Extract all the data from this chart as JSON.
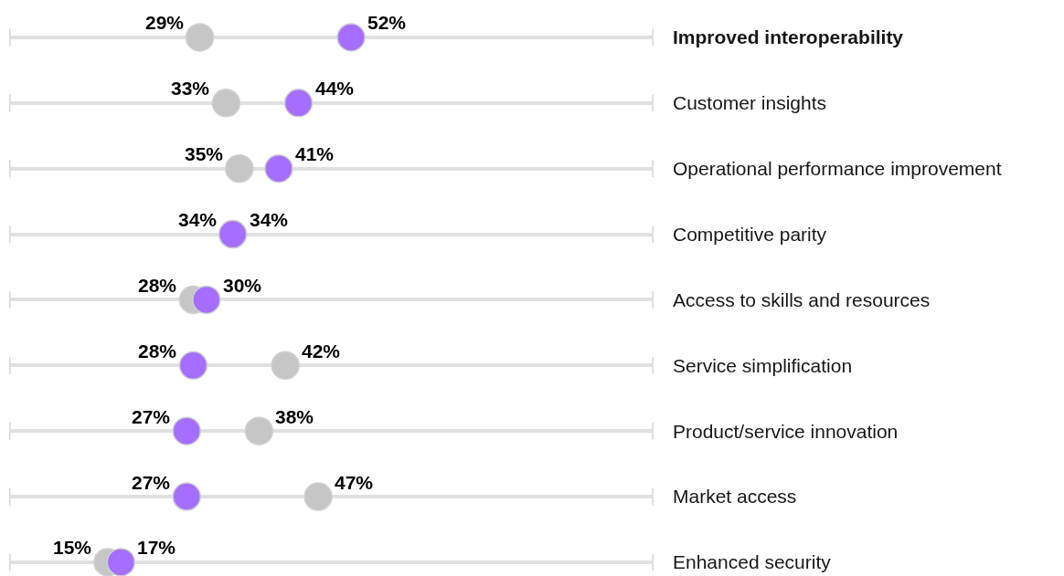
{
  "chart_data": {
    "type": "scatter",
    "orientation": "horizontal",
    "categories": [
      "Improved interoperability",
      "Customer insights",
      "Operational performance improvement",
      "Competitive parity",
      "Access to skills and resources",
      "Service simplification",
      "Product/service innovation",
      "Market access",
      "Enhanced security"
    ],
    "series": [
      {
        "color": "#c6c6c6",
        "values": [
          29,
          33,
          35,
          34,
          28,
          42,
          38,
          47,
          15
        ],
        "value_labels": [
          "29%",
          "33%",
          "35%",
          "34%",
          "28%",
          "42%",
          "38%",
          "47%",
          "15%"
        ]
      },
      {
        "color": "#a56eff",
        "values": [
          52,
          44,
          41,
          34,
          30,
          28,
          27,
          27,
          17
        ],
        "value_labels": [
          "52%",
          "44%",
          "41%",
          "34%",
          "30%",
          "28%",
          "27%",
          "27%",
          "17%"
        ]
      }
    ],
    "xlim": [
      0,
      98
    ],
    "tick_labels": "y",
    "grid": "y",
    "marker": "circle"
  }
}
